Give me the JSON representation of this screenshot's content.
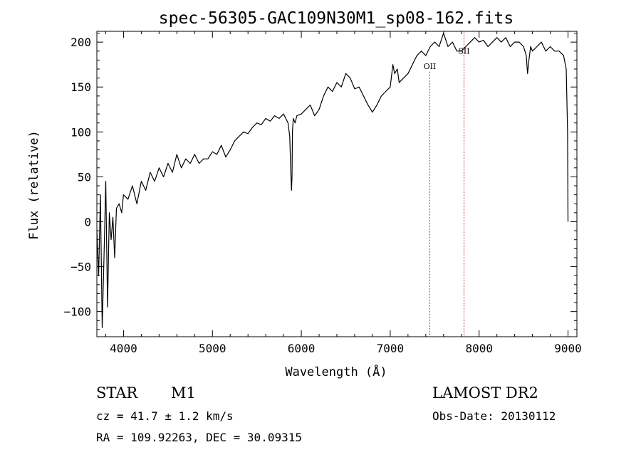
{
  "chart_data": {
    "type": "line",
    "title": "spec-56305-GAC109N30M1_sp08-162.fits",
    "xlabel": "Wavelength (Å)",
    "ylabel": "Flux (relative)",
    "xlim": [
      3700,
      9100
    ],
    "ylim": [
      -128,
      212
    ],
    "x_ticks": [
      4000,
      5000,
      6000,
      7000,
      8000,
      9000
    ],
    "x_tick_labels": [
      "4000",
      "5000",
      "6000",
      "7000",
      "8000",
      "9000"
    ],
    "y_ticks": [
      -100,
      -50,
      0,
      50,
      100,
      150,
      200
    ],
    "y_tick_labels": [
      "−100",
      "−50",
      "0",
      "50",
      "100",
      "150",
      "200"
    ],
    "grid": false,
    "line_color": "#000000",
    "marker_color": "#cc2222",
    "series": [
      {
        "x": [
          3700,
          3720,
          3740,
          3760,
          3780,
          3800,
          3820,
          3840,
          3860,
          3880,
          3900,
          3920,
          3950,
          3980,
          4000,
          4050,
          4100,
          4150,
          4200,
          4250,
          4300,
          4350,
          4400,
          4450,
          4500,
          4550,
          4600,
          4650,
          4700,
          4750,
          4800,
          4850,
          4900,
          4950,
          5000,
          5050,
          5100,
          5150,
          5200,
          5250,
          5300,
          5350,
          5400,
          5450,
          5500,
          5550,
          5600,
          5650,
          5700,
          5750,
          5800,
          5850,
          5870,
          5880,
          5890,
          5895,
          5900,
          5910,
          5930,
          5950,
          6000,
          6050,
          6100,
          6150,
          6200,
          6250,
          6300,
          6350,
          6400,
          6450,
          6500,
          6550,
          6600,
          6650,
          6700,
          6750,
          6800,
          6850,
          6900,
          6950,
          7000,
          7030,
          7050,
          7080,
          7100,
          7150,
          7200,
          7250,
          7300,
          7350,
          7400,
          7450,
          7500,
          7550,
          7600,
          7650,
          7700,
          7750,
          7800,
          7850,
          7900,
          7950,
          8000,
          8050,
          8100,
          8150,
          8200,
          8250,
          8300,
          8350,
          8400,
          8450,
          8500,
          8530,
          8545,
          8560,
          8580,
          8600,
          8650,
          8700,
          8750,
          8800,
          8850,
          8900,
          8950,
          8980,
          8995,
          9000
        ],
        "y": [
          -10,
          -60,
          30,
          -118,
          -40,
          45,
          -95,
          10,
          -20,
          5,
          -40,
          15,
          20,
          10,
          30,
          25,
          40,
          20,
          45,
          35,
          55,
          45,
          60,
          50,
          65,
          55,
          75,
          60,
          70,
          65,
          75,
          65,
          70,
          70,
          78,
          75,
          85,
          72,
          80,
          90,
          95,
          100,
          98,
          105,
          110,
          108,
          115,
          112,
          118,
          115,
          120,
          110,
          95,
          60,
          35,
          50,
          100,
          115,
          110,
          118,
          120,
          125,
          130,
          118,
          125,
          140,
          150,
          145,
          155,
          150,
          165,
          160,
          148,
          150,
          140,
          130,
          122,
          130,
          140,
          145,
          150,
          175,
          165,
          170,
          155,
          160,
          165,
          175,
          185,
          190,
          185,
          195,
          200,
          195,
          210,
          195,
          200,
          190,
          190,
          195,
          200,
          205,
          200,
          202,
          195,
          200,
          205,
          200,
          205,
          195,
          200,
          200,
          195,
          185,
          165,
          180,
          195,
          190,
          195,
          200,
          190,
          195,
          190,
          190,
          185,
          170,
          100,
          0
        ]
      }
    ],
    "annotations": [
      {
        "label": "OII",
        "x": 7445,
        "y": 170
      },
      {
        "label": "SII",
        "x": 7830,
        "y": 187
      }
    ],
    "vlines": [
      {
        "x": 7445,
        "y_top": 167
      },
      {
        "x": 7830,
        "y_top": 211
      }
    ]
  },
  "info": {
    "class_label": "STAR",
    "subclass_label": "M1",
    "cz_text": "cz = 41.7 ± 1.2 km/s",
    "coords_text": "RA = 109.92263, DEC =  30.09315",
    "survey_label": "LAMOST DR2",
    "obs_date_text": "Obs-Date: 20130112"
  }
}
